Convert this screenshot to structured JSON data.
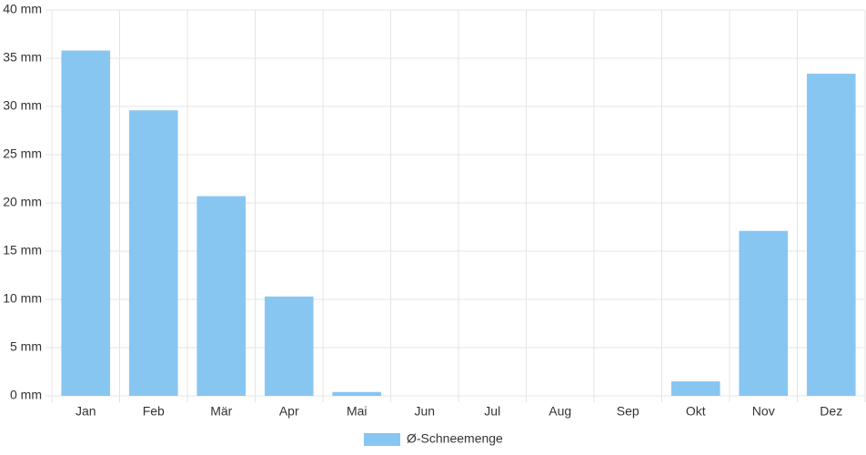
{
  "chart_data": {
    "type": "bar",
    "categories": [
      "Jan",
      "Feb",
      "Mär",
      "Apr",
      "Mai",
      "Jun",
      "Jul",
      "Aug",
      "Sep",
      "Okt",
      "Nov",
      "Dez"
    ],
    "series": [
      {
        "name": "Ø-Schneemenge",
        "color": "#88c6f2",
        "values": [
          35.8,
          29.6,
          20.7,
          10.3,
          0.4,
          0,
          0,
          0,
          0,
          1.5,
          17.1,
          33.4
        ]
      }
    ],
    "ylim": [
      0,
      40
    ],
    "yticks": [
      {
        "value": 0,
        "label": "0 mm"
      },
      {
        "value": 5,
        "label": "5 mm"
      },
      {
        "value": 10,
        "label": "10 mm"
      },
      {
        "value": 15,
        "label": "15 mm"
      },
      {
        "value": 20,
        "label": "20 mm"
      },
      {
        "value": 25,
        "label": "25 mm"
      },
      {
        "value": 30,
        "label": "30 mm"
      },
      {
        "value": 35,
        "label": "35 mm"
      },
      {
        "value": 40,
        "label": "40 mm"
      }
    ],
    "grid": true,
    "legend": "bottom"
  }
}
